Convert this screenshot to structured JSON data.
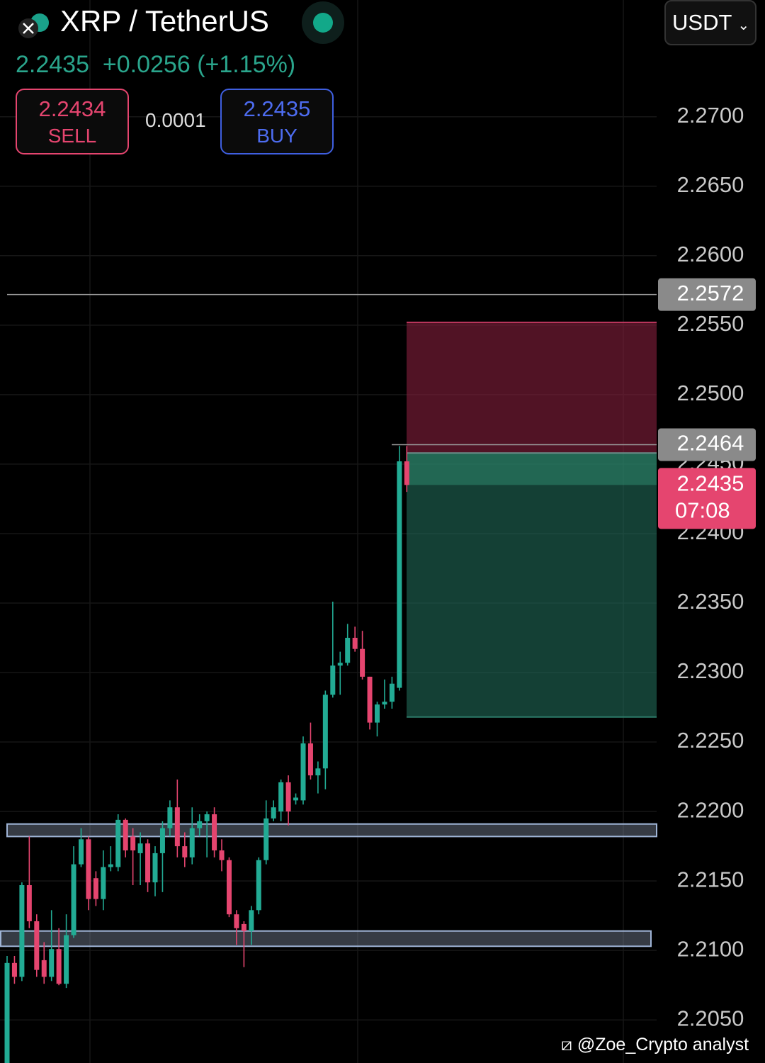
{
  "header": {
    "symbol": "XRP / TetherUS",
    "price": "2.2435",
    "change": "+0.0256",
    "change_pct": "(+1.15%)",
    "sell_price": "2.2434",
    "sell_label": "SELL",
    "spread": "0.0001",
    "buy_price": "2.2435",
    "buy_label": "BUY",
    "currency": "USDT"
  },
  "watermark": "@Zoe_Crypto analyst",
  "chart_data": {
    "type": "candlestick",
    "open": [
      2.2019,
      2.2091,
      2.2081,
      2.2147,
      2.2121,
      2.2093,
      2.2081,
      2.2101,
      2.2076,
      2.2111,
      2.2162,
      2.218,
      2.2152,
      2.2137,
      2.216,
      2.216,
      2.2194,
      2.2182,
      2.217,
      2.2177,
      2.2149,
      2.217,
      2.2188,
      2.2203,
      2.2175,
      2.2167,
      2.2188,
      2.2193,
      2.2198,
      2.2172,
      2.2165,
      2.2126,
      2.2119,
      2.2114,
      2.2129,
      2.2165,
      2.2195,
      2.22,
      2.2221,
      2.2208,
      2.2208,
      2.2249,
      2.2226,
      2.2231,
      2.2284,
      2.2305,
      2.2307,
      2.2325,
      2.2317,
      2.2297,
      2.2264,
      2.2277,
      2.2279,
      2.2289,
      2.2452
    ],
    "high": [
      2.2096,
      2.2096,
      2.2149,
      2.2182,
      2.2126,
      2.2106,
      2.2129,
      2.2116,
      2.2126,
      2.2175,
      2.2188,
      2.2182,
      2.2157,
      2.2172,
      2.2175,
      2.2198,
      2.2195,
      2.2188,
      2.2185,
      2.218,
      2.2175,
      2.2193,
      2.2208,
      2.2223,
      2.2185,
      2.2203,
      2.2198,
      2.22,
      2.2203,
      2.218,
      2.2167,
      2.2129,
      2.2121,
      2.2132,
      2.2167,
      2.2208,
      2.2208,
      2.2223,
      2.2226,
      2.2213,
      2.2254,
      2.2264,
      2.2236,
      2.2287,
      2.2351,
      2.2315,
      2.2335,
      2.2333,
      2.233,
      2.2297,
      2.2279,
      2.2295,
      2.2297,
      2.2463,
      2.2463
    ],
    "low": [
      2.2019,
      2.2076,
      2.2078,
      2.2116,
      2.2081,
      2.2076,
      2.2078,
      2.2075,
      2.2073,
      2.2109,
      2.216,
      2.2129,
      2.2132,
      2.2129,
      2.2157,
      2.2157,
      2.2167,
      2.2147,
      2.2147,
      2.2142,
      2.2139,
      2.2142,
      2.2182,
      2.2167,
      2.216,
      2.2162,
      2.2182,
      2.2167,
      2.2167,
      2.2157,
      2.2124,
      2.2104,
      2.2088,
      2.2104,
      2.2126,
      2.2162,
      2.2193,
      2.2193,
      2.219,
      2.2205,
      2.2205,
      2.2223,
      2.2213,
      2.2216,
      2.2282,
      2.2284,
      2.2305,
      2.2315,
      2.2295,
      2.2259,
      2.2254,
      2.2274,
      2.2274,
      2.2287,
      2.243
    ],
    "close": [
      2.2091,
      2.2081,
      2.2147,
      2.2121,
      2.2086,
      2.2081,
      2.2101,
      2.2076,
      2.2111,
      2.2162,
      2.218,
      2.2137,
      2.2137,
      2.216,
      2.2162,
      2.2194,
      2.2172,
      2.2172,
      2.2177,
      2.2149,
      2.217,
      2.2188,
      2.2203,
      2.2175,
      2.2167,
      2.2188,
      2.2193,
      2.2198,
      2.2172,
      2.2165,
      2.2126,
      2.2116,
      2.2114,
      2.2129,
      2.2165,
      2.2195,
      2.2203,
      2.2221,
      2.22,
      2.221,
      2.2249,
      2.2226,
      2.2231,
      2.2284,
      2.2305,
      2.2307,
      2.2325,
      2.2317,
      2.2297,
      2.2264,
      2.2277,
      2.2279,
      2.2292,
      2.2452,
      2.2435
    ],
    "up_color": "#22ab94",
    "down_color": "#e5456f",
    "ylim": [
      2.2019,
      2.2784
    ],
    "yticks": [
      {
        "value": 2.27,
        "label": "2.2700"
      },
      {
        "value": 2.265,
        "label": "2.2650"
      },
      {
        "value": 2.26,
        "label": "2.2600"
      },
      {
        "value": 2.255,
        "label": "2.2550"
      },
      {
        "value": 2.25,
        "label": "2.2500"
      },
      {
        "value": 2.245,
        "label": "2.2450"
      },
      {
        "value": 2.24,
        "label": "2.2400"
      },
      {
        "value": 2.235,
        "label": "2.2350"
      },
      {
        "value": 2.23,
        "label": "2.2300"
      },
      {
        "value": 2.225,
        "label": "2.2250"
      },
      {
        "value": 2.22,
        "label": "2.2200"
      },
      {
        "value": 2.215,
        "label": "2.2150"
      },
      {
        "value": 2.21,
        "label": "2.2100"
      },
      {
        "value": 2.205,
        "label": "2.2050"
      }
    ],
    "grid": true,
    "price_lines": [
      2.2572,
      2.2464
    ],
    "last_price": 2.2435,
    "countdown": "07:08",
    "position": {
      "stop": 2.2552,
      "entry": 2.2458,
      "target": 2.2268
    },
    "zones": [
      {
        "top": 2.2191,
        "bottom": 2.2182
      },
      {
        "top": 2.2114,
        "bottom": 2.2103
      }
    ]
  }
}
